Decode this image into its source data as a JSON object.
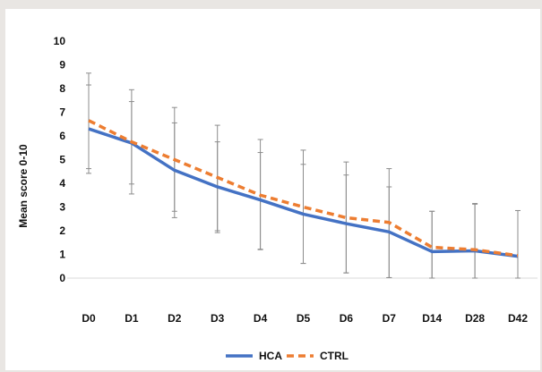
{
  "chart_data": {
    "type": "line",
    "categories": [
      "D0",
      "D1",
      "D2",
      "D3",
      "D4",
      "D5",
      "D6",
      "D7",
      "D14",
      "D28",
      "D42"
    ],
    "ylabel": "Mean score 0-10",
    "xlabel": "",
    "title": "",
    "ylim": [
      0,
      10
    ],
    "yticks": [
      "0",
      "1",
      "2",
      "3",
      "4",
      "5",
      "6",
      "7",
      "8",
      "9",
      "10"
    ],
    "grid": false,
    "legend_position": "bottom",
    "series": [
      {
        "name": "HCA",
        "color": "#4472c4",
        "style": "solid",
        "values": [
          6.3,
          5.7,
          4.55,
          3.85,
          3.3,
          2.7,
          2.3,
          1.95,
          1.12,
          1.15,
          0.92
        ],
        "error_upper": [
          8.15,
          7.45,
          6.55,
          5.75,
          5.3,
          4.8,
          4.35,
          3.85,
          2.82,
          3.12,
          2.85
        ],
        "error_lower": [
          4.42,
          3.97,
          2.55,
          1.92,
          1.22,
          0.62,
          0.22,
          0.02,
          0.0,
          0.0,
          0.0
        ]
      },
      {
        "name": "CTRL",
        "color": "#ed7d31",
        "style": "dashed",
        "values": [
          6.65,
          5.75,
          5.0,
          4.25,
          3.5,
          3.0,
          2.55,
          2.35,
          1.3,
          1.2,
          0.95
        ],
        "error_upper": [
          8.65,
          7.95,
          7.2,
          6.45,
          5.85,
          5.4,
          4.9,
          4.62,
          2.82,
          3.15,
          2.85
        ],
        "error_lower": [
          4.62,
          3.55,
          2.82,
          2.0,
          1.2,
          0.62,
          0.22,
          0.02,
          0.0,
          0.0,
          0.0
        ]
      }
    ]
  }
}
